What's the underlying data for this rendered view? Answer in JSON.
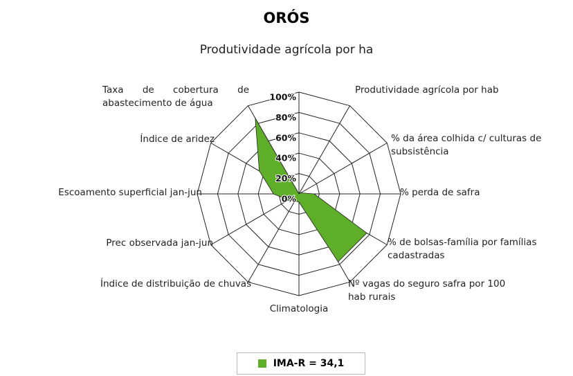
{
  "chart_data": {
    "type": "radar",
    "title": "ORÓS",
    "categories": [
      "Produtividade agrícola por ha",
      "Produtividade agrícola por hab",
      "% da área colhida c/ culturas de subsistência",
      "% perda de safra",
      "% de bolsas-família por famílias cadastradas",
      "Nº vagas do seguro safra por 100 hab rurais",
      "Climatologia",
      "Índice de distribuição de chuvas",
      "Prec observada  jan-jun",
      "Escoamento superficial jan-jun",
      "Índice de aridez",
      "Taxa de cobertura de abastecimento de água"
    ],
    "series": [
      {
        "name": "IMA-R = 34,1",
        "color": "#5fae2a",
        "values": [
          0,
          0,
          2,
          15,
          77,
          77,
          8,
          8,
          12,
          25,
          45,
          86
        ]
      }
    ],
    "ylim": [
      0,
      100
    ],
    "yticks": [
      {
        "value": 0,
        "label": "0%"
      },
      {
        "value": 20,
        "label": "20%"
      },
      {
        "value": 40,
        "label": "40%"
      },
      {
        "value": 60,
        "label": "60%"
      },
      {
        "value": 80,
        "label": "80%"
      },
      {
        "value": 100,
        "label": "100%"
      }
    ],
    "grid": true,
    "legend": "bottom"
  }
}
